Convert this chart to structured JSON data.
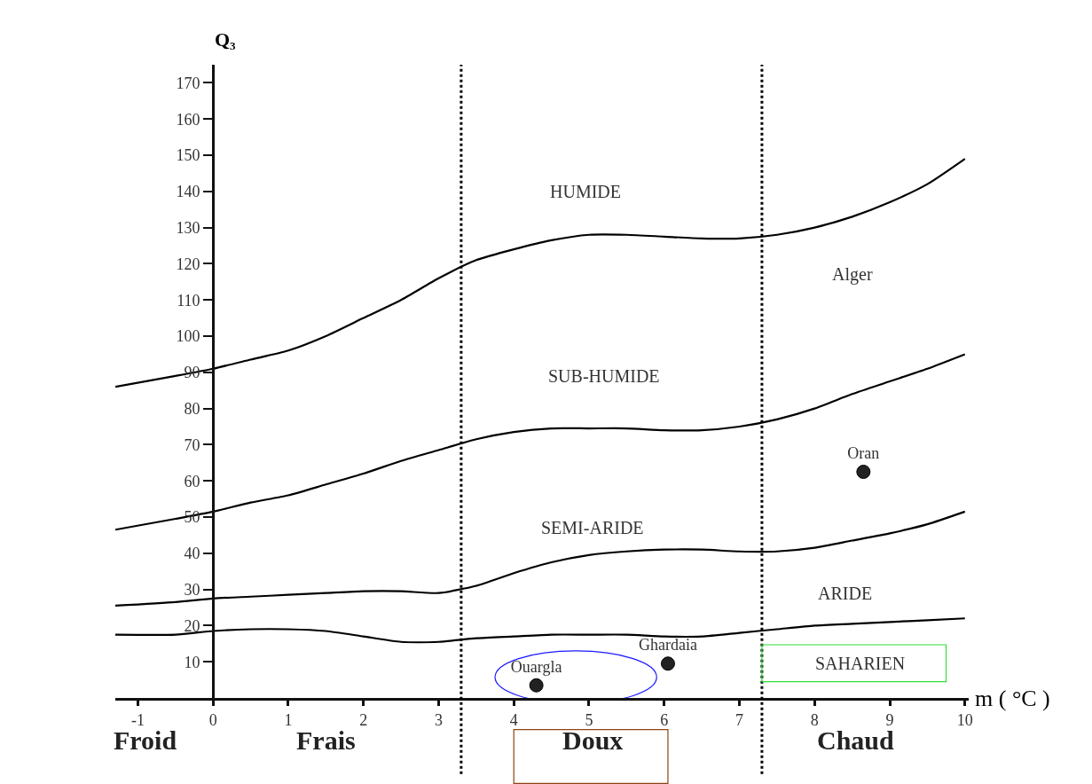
{
  "chart_data": {
    "type": "line",
    "ylabel": "Q₃",
    "xlabel": "m ( °C )",
    "x": [
      -1.3,
      -0.5,
      0,
      0.5,
      1,
      1.5,
      2,
      2.5,
      3,
      3.5,
      4,
      4.5,
      5,
      5.5,
      6,
      6.5,
      7,
      7.5,
      8,
      8.5,
      9,
      9.5,
      10
    ],
    "series": [
      {
        "color": "#000000",
        "values": [
          86,
          89,
          91,
          93.5,
          96,
          100,
          105,
          110,
          116,
          121,
          124,
          126.5,
          128,
          128,
          127.5,
          127,
          127,
          128,
          130,
          133,
          137,
          142,
          149
        ]
      },
      {
        "color": "#000000",
        "values": [
          46.5,
          49.5,
          51.5,
          54,
          56,
          59,
          62,
          65.5,
          68.5,
          71.5,
          73.5,
          74.5,
          74.5,
          74.5,
          74,
          74,
          75,
          77,
          80,
          84,
          87.5,
          91,
          95
        ]
      },
      {
        "color": "#000000",
        "values": [
          25.5,
          26.5,
          27.5,
          28,
          28.5,
          29,
          29.5,
          29.5,
          29,
          31,
          34.5,
          37.5,
          39.5,
          40.5,
          41,
          41,
          40.5,
          40.5,
          41.5,
          43.5,
          45.5,
          48,
          51.5
        ]
      },
      {
        "color": "#000000",
        "values": [
          17.5,
          17.5,
          18.5,
          19,
          19,
          18.5,
          17,
          15.5,
          15.5,
          16.5,
          17,
          17.5,
          17.5,
          17.5,
          17,
          17,
          18,
          19,
          20,
          20.5,
          21,
          21.5,
          22
        ]
      },
      {
        "type": "scatter",
        "name": "Oran",
        "color": "#222222",
        "marker": "circle",
        "x": [
          8.65
        ],
        "values": [
          62.5
        ]
      },
      {
        "type": "scatter",
        "name": "Ghardaia",
        "color": "#222222",
        "marker": "circle",
        "x": [
          6.05
        ],
        "values": [
          9.5
        ]
      },
      {
        "type": "scatter",
        "name": "Ouargla",
        "color": "#222222",
        "marker": "circle",
        "x": [
          4.3
        ],
        "values": [
          3.5
        ]
      }
    ],
    "xlim": [
      -1.3,
      10.05
    ],
    "ylim": [
      0,
      175
    ],
    "xticks": [
      -1,
      0,
      1,
      2,
      3,
      4,
      5,
      6,
      7,
      8,
      9,
      10
    ],
    "yticks": [
      10,
      20,
      30,
      40,
      50,
      60,
      70,
      80,
      90,
      100,
      110,
      120,
      130,
      140,
      150,
      160,
      170
    ],
    "ref_lines": [
      {
        "axis": "x",
        "value": 3.3,
        "color": "#000000",
        "line_style": "dotted"
      },
      {
        "axis": "x",
        "value": 7.3,
        "color": "#000000",
        "line_style": "dotted"
      }
    ],
    "annotations": [
      "HUMIDE",
      "Alger",
      "SUB-HUMIDE",
      "SEMI-ARIDE",
      "ARIDE",
      "SAHARIEN",
      "Froid",
      "Frais",
      "Doux",
      "Chaud"
    ],
    "grid": false,
    "legend": false
  }
}
